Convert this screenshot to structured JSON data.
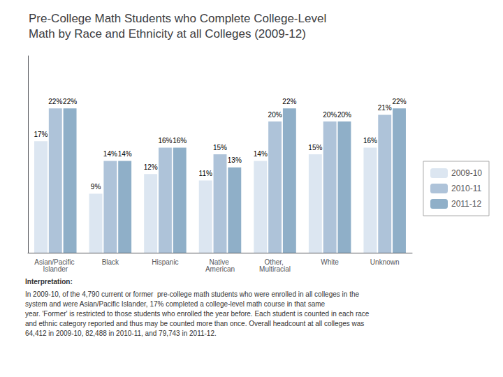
{
  "chart_data": {
    "type": "bar",
    "title": "Pre-College Math Students who Complete College-Level\nMath by Race and Ethnicity at all Colleges (2009-12)",
    "categories": [
      "Asian/Pacific Islander",
      "Black",
      "Hispanic",
      "Native American",
      "Other, Multiracial",
      "White",
      "Unknown"
    ],
    "series": [
      {
        "name": "2009-10",
        "color": "#dce6f1",
        "values": [
          17,
          9,
          12,
          11,
          14,
          15,
          16
        ],
        "value_labels": [
          "17%",
          "9%",
          "12%",
          "11%",
          "14%",
          "15%",
          "16%"
        ]
      },
      {
        "name": "2010-11",
        "color": "#aec3d9",
        "values": [
          22,
          14,
          16,
          15,
          20,
          20,
          21
        ],
        "value_labels": [
          "22%",
          "14%",
          "16%",
          "15%",
          "20%",
          "20%",
          "21%"
        ]
      },
      {
        "name": "2011-12",
        "color": "#8fafc8",
        "values": [
          22,
          14,
          16,
          13,
          22,
          20,
          22
        ],
        "value_labels": [
          "22%",
          "14%",
          "16%",
          "13%",
          "22%",
          "20%",
          "22%"
        ]
      }
    ],
    "ylim": [
      0,
      30
    ],
    "grid": false,
    "legend": "right",
    "data_labels": true,
    "tick_labels": "x",
    "annotations": [
      "Interpretation:",
      "In 2009-10, of the 4,790 current or former  pre-college math students who were enrolled in all colleges in the system and were Asian/Pacific Islander, 17% completed a college-level math course in that same\nyear. 'Former' is restricted to those students who enrolled the year before. Each student is counted in each race\nand ethnic category reported and thus may be counted more than once. Overall headcount at all colleges was\n64,412 in 2009-10, 82,488 in 2010-11, and 79,743 in 2011-12."
    ]
  }
}
